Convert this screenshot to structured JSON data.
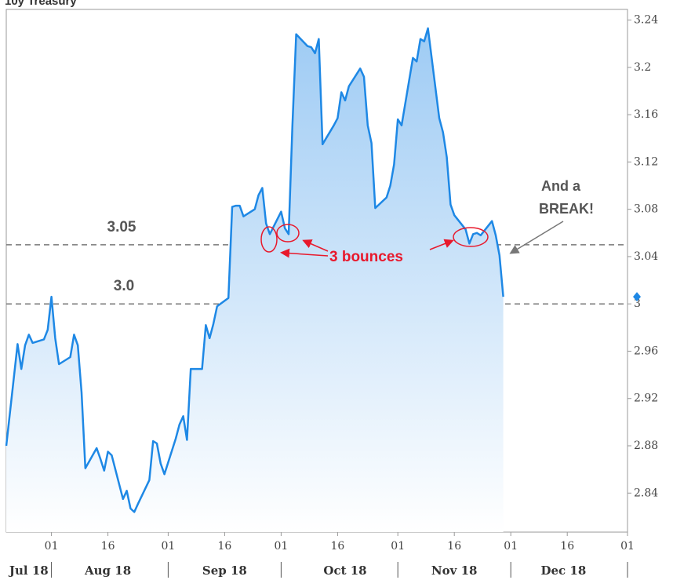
{
  "chart_data": {
    "type": "area",
    "title": "10y Treasury",
    "color": "#1e88e5",
    "x": [
      "2018-07-20",
      "2018-07-23",
      "2018-07-24",
      "2018-07-25",
      "2018-07-26",
      "2018-07-27",
      "2018-07-30",
      "2018-07-31",
      "2018-08-01",
      "2018-08-02",
      "2018-08-03",
      "2018-08-06",
      "2018-08-07",
      "2018-08-08",
      "2018-08-09",
      "2018-08-10",
      "2018-08-13",
      "2018-08-14",
      "2018-08-15",
      "2018-08-16",
      "2018-08-17",
      "2018-08-20",
      "2018-08-21",
      "2018-08-22",
      "2018-08-23",
      "2018-08-24",
      "2018-08-27",
      "2018-08-28",
      "2018-08-29",
      "2018-08-30",
      "2018-08-31",
      "2018-09-03",
      "2018-09-04",
      "2018-09-05",
      "2018-09-06",
      "2018-09-07",
      "2018-09-10",
      "2018-09-11",
      "2018-09-12",
      "2018-09-13",
      "2018-09-14",
      "2018-09-17",
      "2018-09-18",
      "2018-09-19",
      "2018-09-20",
      "2018-09-21",
      "2018-09-24",
      "2018-09-25",
      "2018-09-26",
      "2018-09-27",
      "2018-09-28",
      "2018-10-01",
      "2018-10-02",
      "2018-10-03",
      "2018-10-04",
      "2018-10-05",
      "2018-10-08",
      "2018-10-09",
      "2018-10-10",
      "2018-10-11",
      "2018-10-12",
      "2018-10-15",
      "2018-10-16",
      "2018-10-17",
      "2018-10-18",
      "2018-10-19",
      "2018-10-22",
      "2018-10-23",
      "2018-10-24",
      "2018-10-25",
      "2018-10-26",
      "2018-10-29",
      "2018-10-30",
      "2018-10-31",
      "2018-11-01",
      "2018-11-02",
      "2018-11-05",
      "2018-11-06",
      "2018-11-07",
      "2018-11-08",
      "2018-11-09",
      "2018-11-12",
      "2018-11-13",
      "2018-11-14",
      "2018-11-15",
      "2018-11-16",
      "2018-11-19",
      "2018-11-20",
      "2018-11-21",
      "2018-11-22",
      "2018-11-23",
      "2018-11-26",
      "2018-11-27",
      "2018-11-28",
      "2018-11-29"
    ],
    "values": [
      2.88,
      2.966,
      2.945,
      2.965,
      2.974,
      2.967,
      2.97,
      2.978,
      3.006,
      2.971,
      2.949,
      2.955,
      2.974,
      2.965,
      2.925,
      2.861,
      2.878,
      2.869,
      2.859,
      2.875,
      2.872,
      2.835,
      2.842,
      2.827,
      2.824,
      2.831,
      2.851,
      2.884,
      2.882,
      2.865,
      2.856,
      2.886,
      2.898,
      2.905,
      2.885,
      2.945,
      2.945,
      2.982,
      2.971,
      2.983,
      2.998,
      3.005,
      3.082,
      3.083,
      3.083,
      3.074,
      3.08,
      3.092,
      3.098,
      3.068,
      3.059,
      3.078,
      3.064,
      3.059,
      3.151,
      3.228,
      3.218,
      3.217,
      3.212,
      3.224,
      3.135,
      3.151,
      3.157,
      3.179,
      3.172,
      3.184,
      3.199,
      3.192,
      3.151,
      3.136,
      3.081,
      3.09,
      3.1,
      3.118,
      3.156,
      3.151,
      3.208,
      3.205,
      3.224,
      3.222,
      3.233,
      3.157,
      3.145,
      3.124,
      3.084,
      3.075,
      3.063,
      3.051,
      3.059,
      3.06,
      3.058,
      3.07,
      3.058,
      3.041,
      3.006
    ],
    "xlim": [
      "2018-07-20",
      "2019-01-01"
    ],
    "xticks": [
      {
        "value": "2018-08-01",
        "label": "01"
      },
      {
        "value": "2018-08-16",
        "label": "16"
      },
      {
        "value": "2018-09-01",
        "label": "01"
      },
      {
        "value": "2018-09-16",
        "label": "16"
      },
      {
        "value": "2018-10-01",
        "label": "01"
      },
      {
        "value": "2018-10-16",
        "label": "16"
      },
      {
        "value": "2018-11-01",
        "label": "01"
      },
      {
        "value": "2018-11-16",
        "label": "16"
      },
      {
        "value": "2018-12-01",
        "label": "01"
      },
      {
        "value": "2018-12-16",
        "label": "16"
      },
      {
        "value": "2019-01-01",
        "label": "01"
      }
    ],
    "month_labels": [
      {
        "value": "2018-07-26",
        "label": "Jul 18"
      },
      {
        "value": "2018-08-16",
        "label": "Aug 18"
      },
      {
        "value": "2018-09-16",
        "label": "Sep 18"
      },
      {
        "value": "2018-10-18",
        "label": "Oct 18"
      },
      {
        "value": "2018-11-16",
        "label": "Nov 18"
      },
      {
        "value": "2018-12-15",
        "label": "Dec 18"
      }
    ],
    "ylim": [
      2.807,
      3.249
    ],
    "yticks": [
      2.84,
      2.88,
      2.92,
      2.96,
      3,
      3.04,
      3.08,
      3.12,
      3.16,
      3.2,
      3.24
    ],
    "reference_lines": [
      {
        "value": 3.05,
        "label": "3.05"
      },
      {
        "value": 3,
        "label": "3.0"
      }
    ],
    "annotations": {
      "bounces": "3 bounces",
      "break_line1": "And a",
      "break_line2": "BREAK!"
    }
  }
}
